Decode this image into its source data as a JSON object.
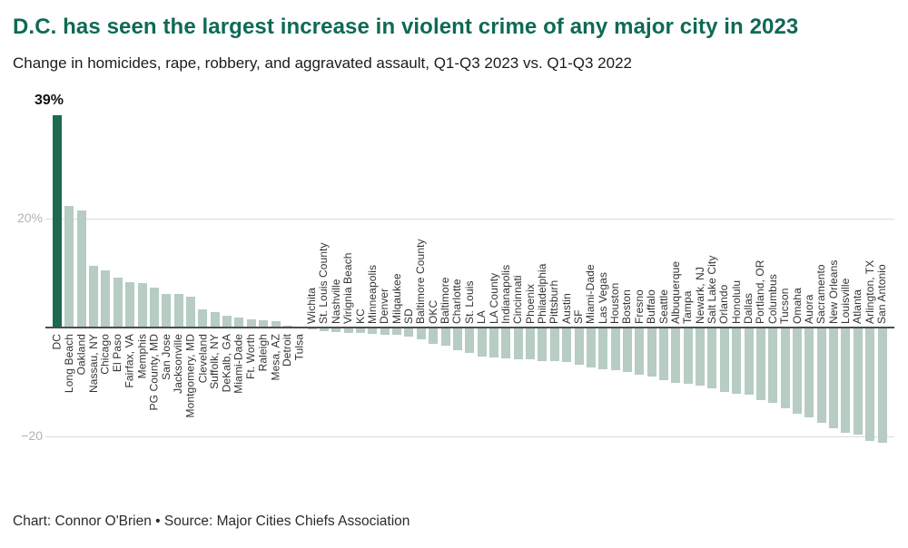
{
  "header": {
    "title": "D.C. has seen the largest increase in violent crime of any major city in 2023",
    "subtitle": "Change in homicides, rape, robbery, and aggravated assault, Q1-Q3 2023 vs. Q1-Q3 2022"
  },
  "footer": {
    "credit": "Chart: Connor O'Brien • Source: Major Cities Chiefs Association"
  },
  "colors": {
    "title": "#0f6a55",
    "highlight_bar": "#1c6a52",
    "bar": "#b7ccc2",
    "gridline": "#dcdcdc",
    "axis_line": "#4d4d4d",
    "tick_text": "#b3b3b3"
  },
  "chart_data": {
    "type": "bar",
    "title": "D.C. has seen the largest increase in violent crime of any major city in 2023",
    "subtitle": "Change in homicides, rape, robbery, and aggravated assault, Q1-Q3 2023 vs. Q1-Q3 2022",
    "annotation": "39%",
    "ylabel": "",
    "xlabel": "",
    "ylim": [
      -22,
      40
    ],
    "grid": true,
    "legend": false,
    "highlight_index": 0,
    "highlight_color": "#1c6a52",
    "bar_color": "#b7ccc2",
    "y_ticks": [
      {
        "label": "20%",
        "value": 20
      },
      {
        "label": "−20",
        "value": -20
      }
    ],
    "categories": [
      "DC",
      "Long Beach",
      "Oakland",
      "Nassau, NY",
      "Chicago",
      "El Paso",
      "Fairfax, VA",
      "Memphis",
      "PG County, MD",
      "San Jose",
      "Jacksonville",
      "Montgomery, MD",
      "Cleveland",
      "Suffolk, NY",
      "DeKalb, GA",
      "Miami-Dade",
      "Ft. Worth",
      "Raleigh",
      "Mesa, AZ",
      "Detroit",
      "Tulsa",
      "Wichita",
      "St. Louis County",
      "Nashville",
      "Virignia Beach",
      "KC",
      "Minneapolis",
      "Denver",
      "Milqaukee",
      "SD",
      "Baltimore County",
      "OKC",
      "Baltimore",
      "Charlotte",
      "St. Louis",
      "LA",
      "LA County",
      "Indianapolis",
      "Cincinnati",
      "Phoenix",
      "Philadelphia",
      "Pittsburh",
      "Austin",
      "SF",
      "Miami-Dade",
      "Las Vegas",
      "Houston",
      "Boston",
      "Fresno",
      "Buffalo",
      "Seattle",
      "Albuquerque",
      "Tampa",
      "Newark, NJ",
      "Salt Lake City",
      "Orlando",
      "Honolulu",
      "Dallas",
      "Portland, OR",
      "Columbus",
      "Tucson",
      "Omaha",
      "Auora",
      "Sacramento",
      "New Orleans",
      "Louisville",
      "Atlanta",
      "Arlington, TX",
      "San Antonio"
    ],
    "values": [
      39,
      22.3,
      21.5,
      11.3,
      10.5,
      9.1,
      8.4,
      8.2,
      7.4,
      6.2,
      6.1,
      5.7,
      3.3,
      2.8,
      2.2,
      1.8,
      1.5,
      1.3,
      1.2,
      0.3,
      0.2,
      -0.4,
      -0.7,
      -0.9,
      -1.0,
      -1.0,
      -1.2,
      -1.3,
      -1.4,
      -1.7,
      -2.1,
      -3.0,
      -3.4,
      -4.2,
      -4.7,
      -5.3,
      -5.5,
      -5.7,
      -5.8,
      -5.9,
      -6.1,
      -6.2,
      -6.4,
      -6.8,
      -7.4,
      -7.6,
      -7.8,
      -8.2,
      -8.6,
      -9.0,
      -9.7,
      -10.1,
      -10.3,
      -10.7,
      -11.1,
      -11.8,
      -12.2,
      -12.4,
      -13.4,
      -13.9,
      -14.8,
      -15.8,
      -16.5,
      -17.5,
      -18.5,
      -19.3,
      -19.6,
      -20.8,
      -21.1
    ]
  }
}
